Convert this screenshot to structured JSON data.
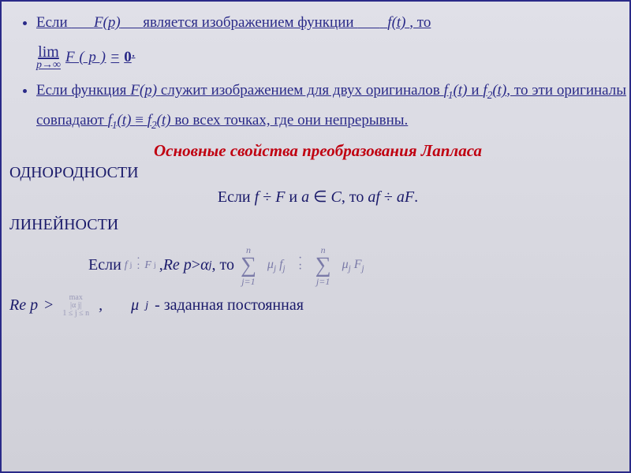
{
  "colors": {
    "border": "#2a2a88",
    "text": "#1a1a6a",
    "underline_text": "#2a2a88",
    "accent_red": "#c00010",
    "math_muted": "#7a7aa8",
    "bg_top": "#e0e0e8",
    "bg_bottom": "#d0d0d8"
  },
  "typography": {
    "body_fontsize_pt": 15,
    "title_fontsize_pt": 16,
    "family": "Times New Roman"
  },
  "bullets": [
    {
      "pre": "Если ",
      "Fp": "F(p)",
      "mid1": " является изображением функции ",
      "ft": "f(t)",
      "mid2": ", то",
      "lim": {
        "symbol": "lim",
        "sub": "p→∞",
        "expr": "F ( p )",
        "eq": "=",
        "rhs": "0",
        "trail": "."
      }
    },
    {
      "pre": "Если функция ",
      "Fp": "F(p)",
      "mid1": " служит изображением для двух оригиналов ",
      "f1": "f",
      "s1": "1",
      "t1": "(t)",
      "and": " и ",
      "f2": "f",
      "s2": "2",
      "t2": "(t)",
      "mid2": ", то эти оригиналы совпадают ",
      "f1b": "f",
      "s1b": "1",
      "tb1": "(t)",
      "equiv": " ≡ ",
      "f2b": "f",
      "s2b": "2",
      "tb2": "(t)",
      "tail": " во всех точках, где они непрерывны."
    }
  ],
  "section_title": "Основные свойства преобразования Лапласа",
  "prop1": {
    "name": "ОДНОРОДНОСТИ",
    "line": {
      "p1": "Если ",
      "f": "f ",
      "div1": " ÷ ",
      "F": " F ",
      "p2": " и ",
      "a": " a ",
      "in": "∈",
      "C": " C",
      "p3": ", то ",
      "af": " af ",
      "div2": " ÷  ",
      "aF": " aF",
      "dot": "."
    }
  },
  "prop2": {
    "name": "ЛИНЕЙНОСТИ",
    "line": {
      "p1": "Если ",
      "fj": "f ",
      "jsub": "j",
      "div_small": "÷",
      "Fj": "F",
      "jsub2": "j",
      "p2": ", ",
      "Rep": " Re p ",
      "gt": "> ",
      "alpha": " α",
      "jsub3": "j",
      "p3": " , то ",
      "sum": {
        "top": "n",
        "bottom": "j=1",
        "term1_mu": "μ",
        "term1_j": "j",
        "term1_f": " f",
        "term1_j2": "j",
        "div": "÷",
        "term2_mu": "μ",
        "term2_j": "j",
        "term2_F": "F",
        "term2_j2": "j"
      }
    }
  },
  "lastline": {
    "Rep": "Re p ",
    "gt": ">",
    "max": {
      "top": "max",
      "mid": "|α j|",
      "bot": "1 ≤ j ≤ n"
    },
    "comma": ",",
    "mu": "μ",
    "jsub": "j",
    "tail": " - заданная постоянная"
  }
}
